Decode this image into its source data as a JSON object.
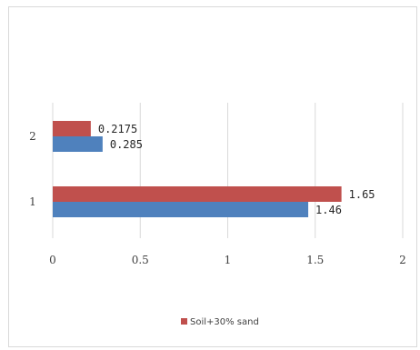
{
  "chart_data": {
    "type": "bar",
    "orientation": "horizontal",
    "categories": [
      "1",
      "2"
    ],
    "series": [
      {
        "name": "",
        "color": "#4f81bd",
        "values": [
          1.46,
          0.285
        ],
        "labels": [
          "1.46",
          "0.285"
        ]
      },
      {
        "name": "Soil+30% sand",
        "color": "#c0504d",
        "values": [
          1.65,
          0.2175
        ],
        "labels": [
          "1.65",
          "0.2175"
        ]
      }
    ],
    "xlim": [
      0,
      2
    ],
    "xticks": [
      0,
      0.5,
      1,
      1.5,
      2
    ],
    "xtick_labels": [
      "0",
      "0.5",
      "1",
      "1.5",
      "2"
    ],
    "grid": "vertical",
    "legend": {
      "position": "bottom",
      "entries": [
        "Soil+30% sand"
      ]
    },
    "title": "",
    "xlabel": "",
    "ylabel": ""
  }
}
